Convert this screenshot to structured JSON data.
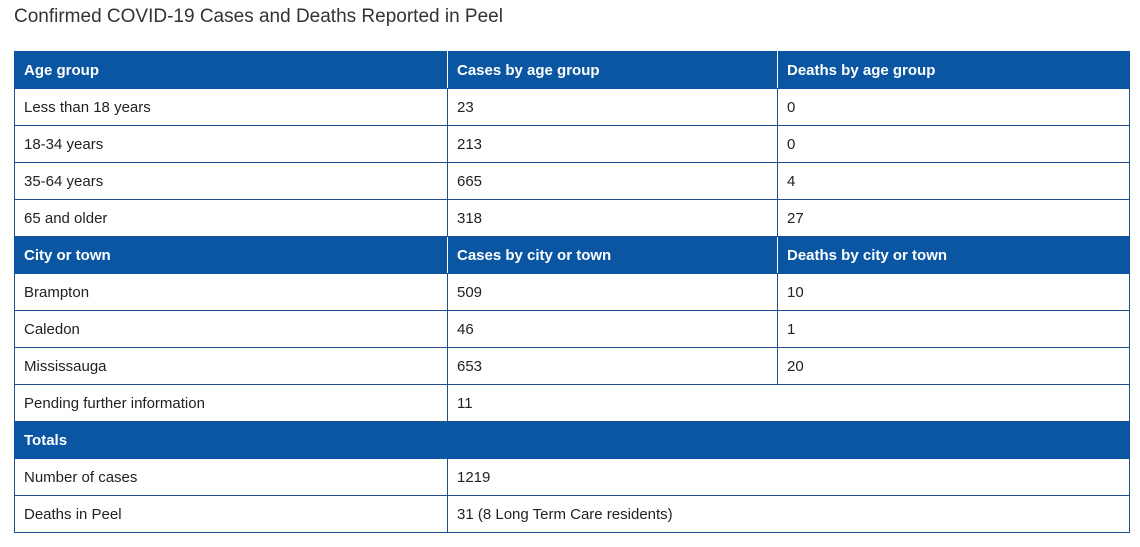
{
  "title": "Confirmed COVID-19 Cases and Deaths Reported in Peel",
  "age_section": {
    "headers": [
      "Age group",
      "Cases by age group",
      "Deaths by age group"
    ],
    "rows": [
      [
        "Less than 18 years",
        "23",
        "0"
      ],
      [
        "18-34 years",
        "213",
        "0"
      ],
      [
        "35-64 years",
        "665",
        "4"
      ],
      [
        "65 and older",
        "318",
        "27"
      ]
    ]
  },
  "city_section": {
    "headers": [
      "City or town",
      "Cases by city or town",
      "Deaths by city or town"
    ],
    "rows": [
      [
        "Brampton",
        "509",
        "10"
      ],
      [
        "Caledon",
        "46",
        "1"
      ],
      [
        "Mississauga",
        "653",
        "20"
      ]
    ],
    "pending": [
      "Pending further information",
      "11"
    ]
  },
  "totals_section": {
    "header": "Totals",
    "rows": [
      [
        "Number of cases",
        "1219"
      ],
      [
        "Deaths in Peel",
        "31 (8 Long Term Care residents)"
      ]
    ]
  },
  "colors": {
    "header_bg": "#0a56a3",
    "header_text": "#ffffff",
    "border": "#1f4f8c"
  }
}
